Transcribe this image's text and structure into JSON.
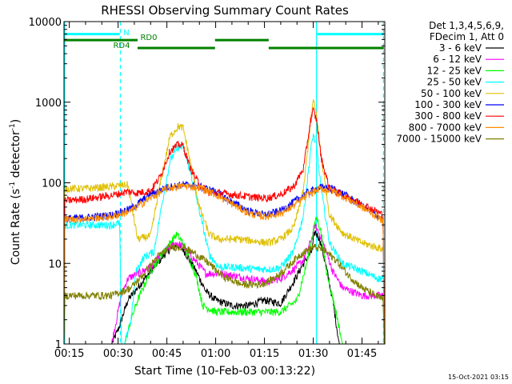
{
  "chart_data": {
    "type": "line",
    "title": "RHESSI Observing Summary Count Rates",
    "xlabel": "Start Time (10-Feb-03 00:13:22)",
    "ylabel": "Count Rate (s⁻¹ detector⁻¹)",
    "ylabel_main": "Count Rate (s",
    "ylabel_sup1": "-1",
    "ylabel_mid": " detector",
    "ylabel_sup2": "-1",
    "ylabel_end": ")",
    "yscale": "log",
    "ylim": [
      1,
      10000
    ],
    "xlim_minutes": [
      13.37,
      112.0
    ],
    "x_ticks": [
      {
        "m": 15,
        "label": "00:15"
      },
      {
        "m": 30,
        "label": "00:30"
      },
      {
        "m": 45,
        "label": "00:45"
      },
      {
        "m": 60,
        "label": "01:00"
      },
      {
        "m": 75,
        "label": "01:15"
      },
      {
        "m": 90,
        "label": "01:30"
      },
      {
        "m": 105,
        "label": "01:45"
      }
    ],
    "y_ticks": [
      {
        "v": 1,
        "label": "1"
      },
      {
        "v": 10,
        "label": "10"
      },
      {
        "v": 100,
        "label": "100"
      },
      {
        "v": 1000,
        "label": "1000"
      },
      {
        "v": 10000,
        "label": "10000"
      }
    ],
    "legend_header": [
      "Det 1,3,4,5,6,9,",
      "FDecim 1, Att 0"
    ],
    "series": [
      {
        "name": "3 - 6 keV",
        "color": "#000000",
        "points": [
          [
            13.4,
            1
          ],
          [
            28,
            1
          ],
          [
            30,
            1.5
          ],
          [
            33,
            3.5
          ],
          [
            36,
            5
          ],
          [
            40,
            8
          ],
          [
            45,
            14
          ],
          [
            48,
            17
          ],
          [
            50,
            15
          ],
          [
            54,
            8
          ],
          [
            57,
            4.5
          ],
          [
            60,
            3.5
          ],
          [
            65,
            3
          ],
          [
            70,
            3
          ],
          [
            75,
            3.5
          ],
          [
            80,
            3.2
          ],
          [
            84,
            6
          ],
          [
            87,
            10
          ],
          [
            89.5,
            14
          ],
          [
            90.5,
            25
          ],
          [
            92,
            20
          ],
          [
            94,
            9
          ],
          [
            96,
            3.5
          ],
          [
            98,
            1
          ],
          [
            112,
            1
          ]
        ]
      },
      {
        "name": "6 - 12 keV",
        "color": "#ff00ff",
        "points": [
          [
            13.4,
            1
          ],
          [
            28,
            1
          ],
          [
            31,
            4
          ],
          [
            33,
            6.5
          ],
          [
            36,
            7.5
          ],
          [
            40,
            9
          ],
          [
            45,
            15
          ],
          [
            48,
            18
          ],
          [
            50,
            16
          ],
          [
            54,
            10.5
          ],
          [
            57,
            7.5
          ],
          [
            62,
            7.5
          ],
          [
            70,
            6.5
          ],
          [
            76,
            6
          ],
          [
            80,
            6.5
          ],
          [
            84,
            8.5
          ],
          [
            87,
            11
          ],
          [
            89.5,
            20
          ],
          [
            90.5,
            30
          ],
          [
            92,
            23
          ],
          [
            94,
            14
          ],
          [
            96,
            8
          ],
          [
            99,
            5
          ],
          [
            105,
            4
          ],
          [
            112,
            4
          ]
        ]
      },
      {
        "name": "12 - 25 keV",
        "color": "#00ff00",
        "points": [
          [
            13.4,
            1
          ],
          [
            32,
            1
          ],
          [
            34,
            2
          ],
          [
            36,
            3.5
          ],
          [
            40,
            8
          ],
          [
            45,
            16
          ],
          [
            48,
            23
          ],
          [
            50,
            18
          ],
          [
            54,
            7
          ],
          [
            56,
            3
          ],
          [
            60,
            2.5
          ],
          [
            70,
            2.5
          ],
          [
            80,
            2.5
          ],
          [
            85,
            3.5
          ],
          [
            88,
            10
          ],
          [
            90,
            25
          ],
          [
            91,
            38
          ],
          [
            92.5,
            24
          ],
          [
            94,
            8
          ],
          [
            97,
            2.5
          ],
          [
            99,
            1
          ],
          [
            112,
            1
          ]
        ]
      },
      {
        "name": "25 - 50 keV",
        "color": "#00ffff",
        "points": [
          [
            13.4,
            1
          ],
          [
            13.6,
            30
          ],
          [
            20,
            30
          ],
          [
            28,
            30
          ],
          [
            30.5,
            32
          ],
          [
            31,
            1
          ],
          [
            32,
            1
          ],
          [
            34,
            2
          ],
          [
            35.5,
            8
          ],
          [
            38,
            12
          ],
          [
            41,
            14
          ],
          [
            43.5,
            55
          ],
          [
            46,
            190
          ],
          [
            48.5,
            280
          ],
          [
            50,
            270
          ],
          [
            52,
            150
          ],
          [
            55,
            45
          ],
          [
            58,
            13
          ],
          [
            61,
            9
          ],
          [
            66,
            9
          ],
          [
            72,
            8.5
          ],
          [
            77,
            8.5
          ],
          [
            80,
            9
          ],
          [
            84,
            14
          ],
          [
            87,
            40
          ],
          [
            89.2,
            250
          ],
          [
            90,
            400
          ],
          [
            91,
            280
          ],
          [
            92.5,
            80
          ],
          [
            95,
            18
          ],
          [
            99,
            10
          ],
          [
            105,
            8
          ],
          [
            110,
            6.5
          ],
          [
            111.6,
            6.5
          ],
          [
            111.8,
            1
          ],
          [
            112,
            1
          ]
        ]
      },
      {
        "name": "50 - 100 keV",
        "color": "#e0c000",
        "points": [
          [
            13.4,
            1
          ],
          [
            13.6,
            85
          ],
          [
            20,
            85
          ],
          [
            28,
            90
          ],
          [
            33,
            95
          ],
          [
            36,
            20
          ],
          [
            40,
            22
          ],
          [
            43,
            100
          ],
          [
            46,
            380
          ],
          [
            48.5,
            500
          ],
          [
            50,
            480
          ],
          [
            52,
            200
          ],
          [
            55,
            50
          ],
          [
            58,
            23
          ],
          [
            61,
            20
          ],
          [
            67,
            20
          ],
          [
            72,
            19
          ],
          [
            76,
            18
          ],
          [
            80,
            20
          ],
          [
            84,
            28
          ],
          [
            87,
            80
          ],
          [
            89.2,
            600
          ],
          [
            90,
            1050
          ],
          [
            91,
            700
          ],
          [
            92.5,
            200
          ],
          [
            95,
            40
          ],
          [
            99,
            24
          ],
          [
            105,
            18
          ],
          [
            111.6,
            15
          ],
          [
            111.8,
            1
          ],
          [
            112,
            1
          ]
        ]
      },
      {
        "name": "100 - 300 keV",
        "color": "#0000ff",
        "points": [
          [
            13.4,
            1
          ],
          [
            13.6,
            36
          ],
          [
            20,
            37
          ],
          [
            28,
            40
          ],
          [
            34,
            48
          ],
          [
            40,
            72
          ],
          [
            45,
            88
          ],
          [
            50,
            95
          ],
          [
            55,
            90
          ],
          [
            60,
            78
          ],
          [
            65,
            58
          ],
          [
            70,
            45
          ],
          [
            75,
            40
          ],
          [
            80,
            45
          ],
          [
            84,
            58
          ],
          [
            88,
            75
          ],
          [
            92,
            88
          ],
          [
            96,
            85
          ],
          [
            100,
            70
          ],
          [
            105,
            52
          ],
          [
            111.5,
            35
          ],
          [
            111.8,
            1
          ],
          [
            112,
            1
          ]
        ]
      },
      {
        "name": "300 - 800 keV",
        "color": "#ff0000",
        "points": [
          [
            13.4,
            1
          ],
          [
            13.6,
            60
          ],
          [
            20,
            63
          ],
          [
            28,
            70
          ],
          [
            33,
            78
          ],
          [
            36,
            75
          ],
          [
            40,
            80
          ],
          [
            43,
            120
          ],
          [
            46,
            250
          ],
          [
            48.5,
            300
          ],
          [
            50,
            290
          ],
          [
            52,
            160
          ],
          [
            55,
            95
          ],
          [
            58,
            75
          ],
          [
            61,
            75
          ],
          [
            67,
            70
          ],
          [
            72,
            66
          ],
          [
            76,
            65
          ],
          [
            80,
            72
          ],
          [
            84,
            90
          ],
          [
            87,
            150
          ],
          [
            89.2,
            600
          ],
          [
            90,
            800
          ],
          [
            91,
            600
          ],
          [
            92.5,
            200
          ],
          [
            95,
            85
          ],
          [
            99,
            70
          ],
          [
            105,
            55
          ],
          [
            111.5,
            40
          ],
          [
            111.8,
            1
          ],
          [
            112,
            1
          ]
        ]
      },
      {
        "name": "800 - 7000 keV",
        "color": "#ff8c00",
        "points": [
          [
            13.4,
            1
          ],
          [
            13.6,
            35
          ],
          [
            20,
            36
          ],
          [
            28,
            38
          ],
          [
            34,
            45
          ],
          [
            40,
            65
          ],
          [
            45,
            85
          ],
          [
            50,
            92
          ],
          [
            55,
            88
          ],
          [
            60,
            72
          ],
          [
            65,
            55
          ],
          [
            70,
            42
          ],
          [
            75,
            38
          ],
          [
            80,
            42
          ],
          [
            84,
            52
          ],
          [
            88,
            70
          ],
          [
            92,
            85
          ],
          [
            96,
            80
          ],
          [
            100,
            65
          ],
          [
            105,
            50
          ],
          [
            111.5,
            34
          ],
          [
            111.8,
            1
          ],
          [
            112,
            1
          ]
        ]
      },
      {
        "name": "7000 - 15000 keV",
        "color": "#808000",
        "points": [
          [
            13.4,
            1
          ],
          [
            13.6,
            4
          ],
          [
            20,
            4
          ],
          [
            28,
            4
          ],
          [
            34,
            5
          ],
          [
            38,
            7.5
          ],
          [
            42,
            12
          ],
          [
            46,
            16
          ],
          [
            50,
            16
          ],
          [
            54,
            13
          ],
          [
            58,
            10
          ],
          [
            62,
            7
          ],
          [
            68,
            5.5
          ],
          [
            74,
            5.5
          ],
          [
            78,
            6.5
          ],
          [
            82,
            9
          ],
          [
            86,
            13
          ],
          [
            90,
            16
          ],
          [
            93,
            15
          ],
          [
            97,
            11
          ],
          [
            101,
            7
          ],
          [
            105,
            5
          ],
          [
            111.5,
            3.5
          ],
          [
            111.8,
            1
          ],
          [
            112,
            1
          ]
        ]
      }
    ],
    "bars": [
      {
        "label": "N",
        "color": "#00ffff",
        "y": 7000,
        "segments": [
          [
            13.5,
            30.5
          ],
          [
            91.2,
            111.7
          ]
        ]
      },
      {
        "label": "RD0",
        "color": "#008000",
        "y": 5900,
        "segments": [
          [
            13.5,
            36.0
          ],
          [
            59.8,
            76.3
          ]
        ]
      },
      {
        "label": "RD4",
        "color": "#008000",
        "y": 4700,
        "segments": [
          [
            36.0,
            59.8
          ],
          [
            76.3,
            111.7
          ]
        ]
      }
    ],
    "vlines": [
      {
        "m": 13.6,
        "color": "#00ffff",
        "style": "solid"
      },
      {
        "m": 30.7,
        "color": "#00ffff",
        "style": "dashed"
      },
      {
        "m": 91.0,
        "color": "#00ffff",
        "style": "solid"
      },
      {
        "m": 111.6,
        "color": "#00ffff",
        "style": "dashed"
      }
    ],
    "timestamp": "15-Oct-2021 03:15"
  }
}
